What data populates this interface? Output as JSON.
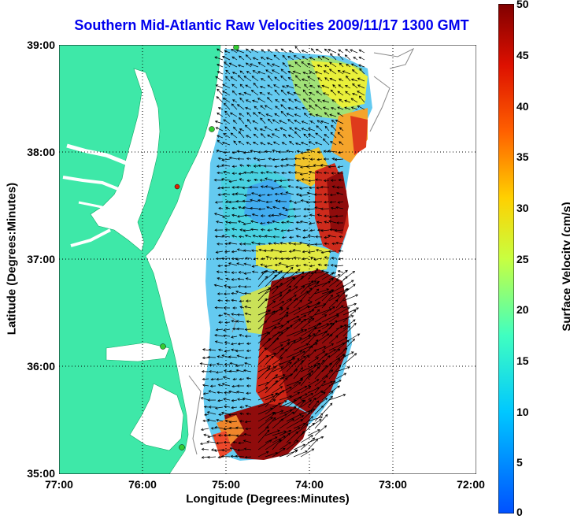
{
  "title": "Southern Mid-Atlantic Raw Velocities 2009/11/17 1300 GMT",
  "xlabel": "Longitude (Degrees:Minutes)",
  "ylabel": "Latitude (Degrees:Minutes)",
  "x_ticks": [
    "77:00",
    "76:00",
    "75:00",
    "74:00",
    "73:00",
    "72:00"
  ],
  "y_ticks": [
    "39:00",
    "38:00",
    "37:00",
    "36:00",
    "35:00"
  ],
  "colorbar": {
    "label": "Surface Velocity (cm/s)",
    "ticks": [
      "50",
      "45",
      "40",
      "35",
      "30",
      "25",
      "20",
      "15",
      "10",
      "5",
      "0"
    ],
    "range": [
      0,
      50
    ]
  },
  "colors": {
    "land": "#3ee8a8",
    "ocean": "#ffffff",
    "title": "#0000ee"
  },
  "map": {
    "lon_range": [
      -77,
      -72
    ],
    "lat_range": [
      35,
      39
    ],
    "station_marker_color": "#33cc33",
    "highlight_marker_color": "#dd2200"
  }
}
